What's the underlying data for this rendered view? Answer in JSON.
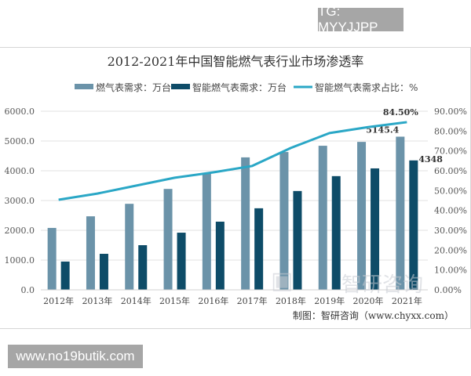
{
  "badges": {
    "top": "TG: MYYJJPP",
    "bottom": "www.no19butik.com"
  },
  "chart_data": {
    "type": "bar+line",
    "title": "2012-2021年中国智能燃气表行业市场渗透率",
    "categories": [
      "2012年",
      "2013年",
      "2014年",
      "2015年",
      "2016年",
      "2017年",
      "2018年",
      "2019年",
      "2020年",
      "2021年"
    ],
    "series": [
      {
        "name": "燃气表需求：万台",
        "type": "bar",
        "axis": "left",
        "color": "#6b93a9",
        "values": [
          2080,
          2470,
          2890,
          3390,
          3920,
          4450,
          4630,
          4840,
          4970,
          5145.4
        ]
      },
      {
        "name": "智能燃气表需求：万台",
        "type": "bar",
        "axis": "left",
        "color": "#0e4c68",
        "values": [
          950,
          1210,
          1500,
          1920,
          2290,
          2740,
          3320,
          3820,
          4080,
          4348
        ]
      },
      {
        "name": "智能燃气表需求占比：%",
        "type": "line",
        "axis": "right",
        "color": "#2aa7c6",
        "values": [
          45.4,
          48.5,
          52.5,
          56.5,
          59.2,
          62.4,
          71.5,
          79.0,
          82.0,
          84.5
        ]
      }
    ],
    "data_labels": {
      "bar_a_last": "5145.4",
      "bar_b_last": "4348",
      "line_last": "84.50%"
    },
    "left_axis": {
      "range": [
        0,
        6000
      ],
      "ticks": [
        "0.0",
        "1000.0",
        "2000.0",
        "3000.0",
        "4000.0",
        "5000.0",
        "6000.0"
      ]
    },
    "right_axis": {
      "range": [
        0,
        90
      ],
      "ticks": [
        "0.00%",
        "10.00%",
        "20.00%",
        "30.00%",
        "40.00%",
        "50.00%",
        "60.00%",
        "70.00%",
        "80.00%",
        "90.00%"
      ]
    },
    "grid": true,
    "legend": "top",
    "source": "制图：智研咨询（www.chyxx.com）",
    "watermark": "智研咨询"
  }
}
